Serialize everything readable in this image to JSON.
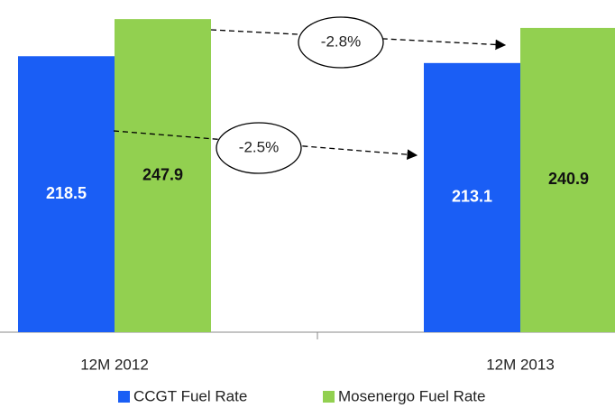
{
  "chart_data": {
    "type": "bar",
    "categories": [
      "12M 2012",
      "12M 2013"
    ],
    "series": [
      {
        "name": "CCGT Fuel Rate",
        "color": "#1a5ef5",
        "values": [
          218.5,
          213.1
        ]
      },
      {
        "name": "Mosenergo Fuel Rate",
        "color": "#92d050",
        "values": [
          247.9,
          240.9
        ]
      }
    ],
    "ylim": [
      0,
      263
    ],
    "annotations": [
      {
        "text": "-2.8%"
      },
      {
        "text": "-2.5%"
      }
    ],
    "legend": "bottom"
  }
}
